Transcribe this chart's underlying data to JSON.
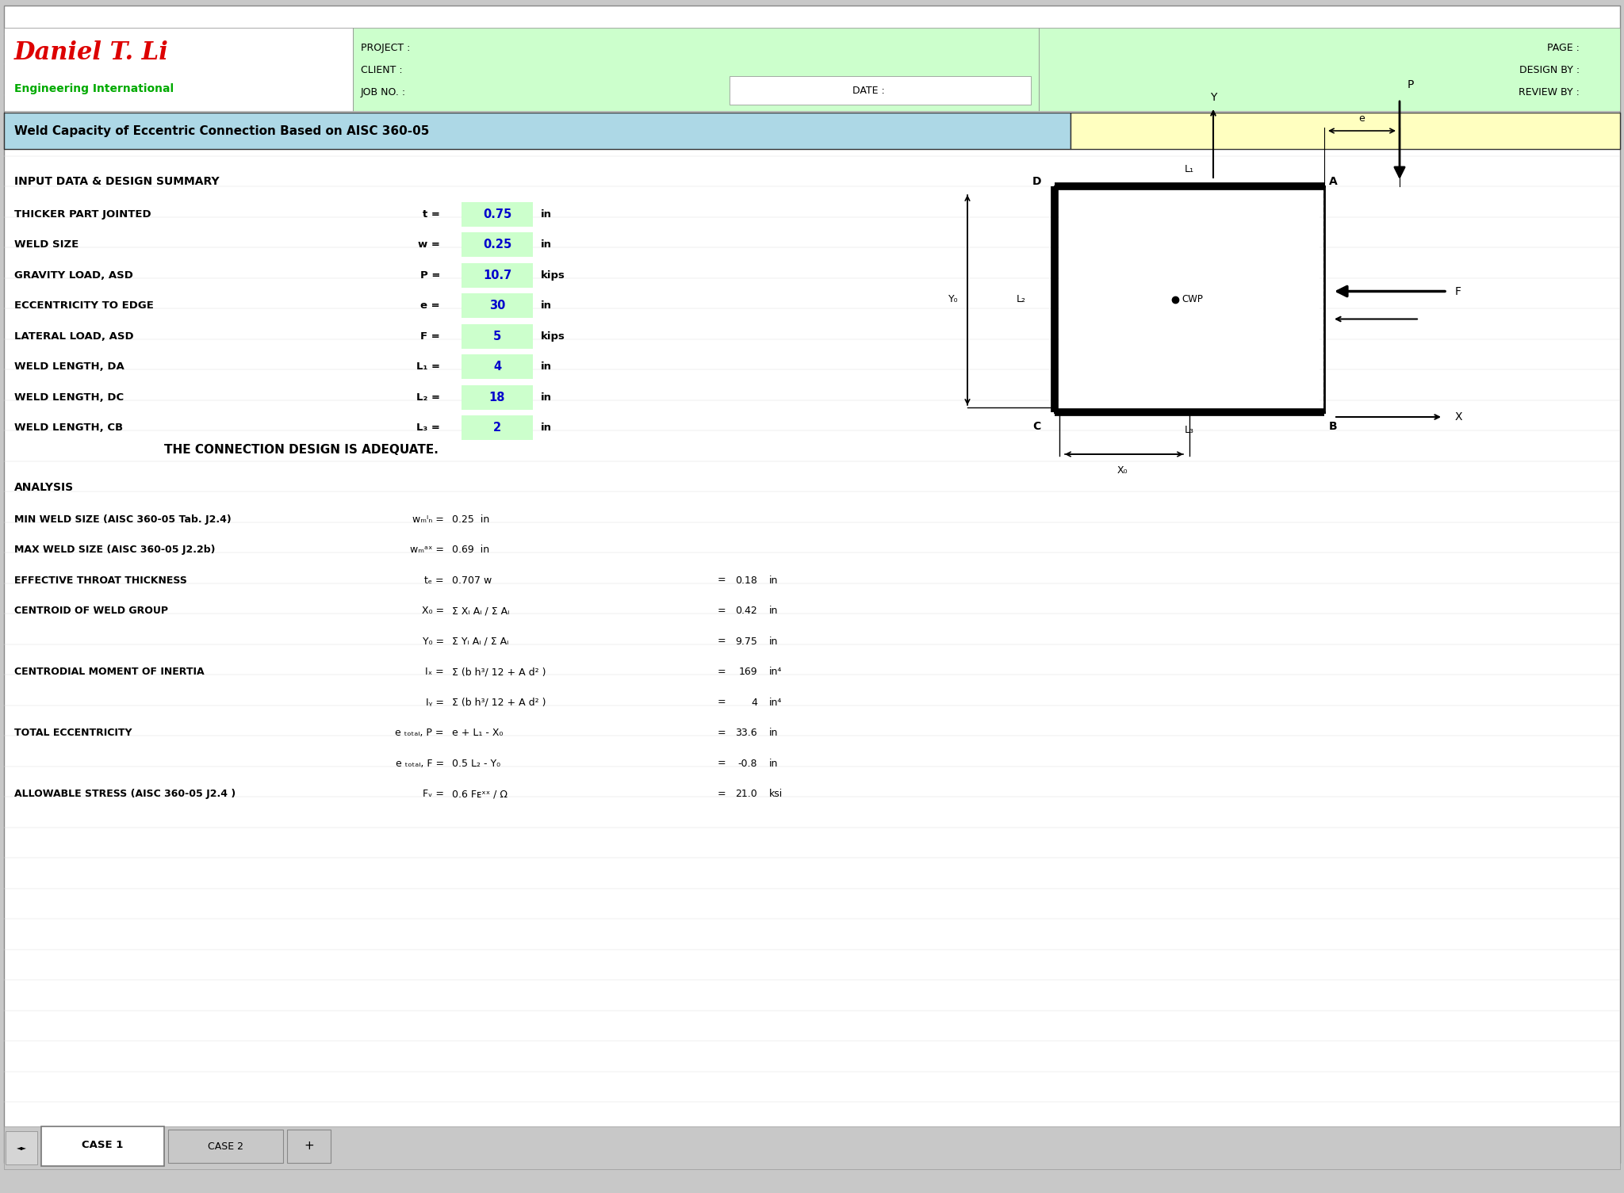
{
  "title": "Weld Capacity of Eccentric Connection Based on AISC 360-05",
  "company_name": "Daniel T. Li",
  "company_sub": "Engineering International",
  "input_section_title": "INPUT DATA & DESIGN SUMMARY",
  "input_rows": [
    [
      "THICKER PART JOINTED",
      "t",
      "0.75",
      "in"
    ],
    [
      "WELD SIZE",
      "w",
      "0.25",
      "in"
    ],
    [
      "GRAVITY LOAD, ASD",
      "P",
      "10.7",
      "kips"
    ],
    [
      "ECCENTRICITY TO EDGE",
      "e",
      "30",
      "in"
    ],
    [
      "LATERAL LOAD, ASD",
      "F",
      "5",
      "kips"
    ],
    [
      "WELD LENGTH, DA",
      "L₁",
      "4",
      "in"
    ],
    [
      "WELD LENGTH, DC",
      "L₂",
      "18",
      "in"
    ],
    [
      "WELD LENGTH, CB",
      "L₃",
      "2",
      "in"
    ]
  ],
  "adequate_text": "THE CONNECTION DESIGN IS ADEQUATE.",
  "analysis_title": "ANALYSIS",
  "analysis_rows": [
    [
      "MIN WELD SIZE (AISC 360-05 Tab. J2.4)",
      "wₘᴵₙ =",
      "0.25  in",
      "",
      ""
    ],
    [
      "MAX WELD SIZE (AISC 360-05 J2.2b)",
      "wₘᵃˣ =",
      "0.69  in",
      "",
      ""
    ],
    [
      "EFFECTIVE THROAT THICKNESS",
      "tₑ =",
      "0.707 w",
      "=",
      "0.18",
      "in"
    ],
    [
      "CENTROID OF WELD GROUP",
      "X₀ =",
      "Σ Xᵢ Aᵢ / Σ Aᵢ",
      "=",
      "0.42",
      "in"
    ],
    [
      "",
      "Y₀ =",
      "Σ Yᵢ Aᵢ / Σ Aᵢ",
      "=",
      "9.75",
      "in"
    ],
    [
      "CENTRODIAL MOMENT OF INERTIA",
      "Iₓ =",
      "Σ (b h³/ 12 + A d² )",
      "=",
      "169",
      "in⁴"
    ],
    [
      "",
      "Iᵧ =",
      "Σ (b h³/ 12 + A d² )",
      "=",
      "4",
      "in⁴"
    ],
    [
      "TOTAL ECCENTRICITY",
      "e ₜₒₜₐₗ, P =",
      "e + L₁ - X₀",
      "=",
      "33.6",
      "in"
    ],
    [
      "",
      "e ₜₒₜₐₗ, F =",
      "0.5 L₂ - Y₀",
      "=",
      "-0.8",
      "in"
    ],
    [
      "ALLOWABLE STRESS (AISC 360-05 J2.4 )",
      "Fᵥ =",
      "0.6 Fᴇˣˣ / Ω",
      "=",
      "21.0",
      "ksi"
    ]
  ],
  "header_bg": "#CCFFCC",
  "title_bg": "#ADD8E6",
  "title_right_bg": "#FFFFC0",
  "input_value_bg": "#CCFFCC",
  "tab_bar_bg": "#C8C8C8"
}
